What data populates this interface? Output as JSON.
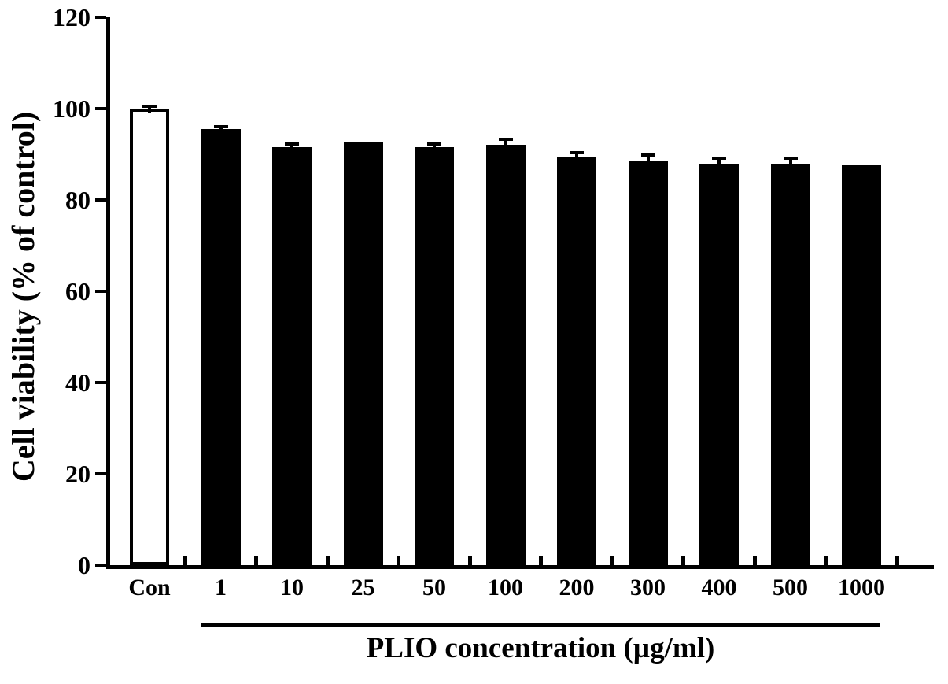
{
  "figure": {
    "background": "#ffffff"
  },
  "chart_data": {
    "type": "bar",
    "title": "",
    "xlabel": "PLIO concentration (µg/ml)",
    "ylabel": "Cell viability (% of control)",
    "ylim": [
      0,
      120
    ],
    "yticks": [
      0,
      20,
      40,
      60,
      80,
      100,
      120
    ],
    "categories": [
      "Con",
      "1",
      "10",
      "25",
      "50",
      "100",
      "200",
      "300",
      "400",
      "500",
      "1000"
    ],
    "values": [
      100,
      95.5,
      91.5,
      92.5,
      91.5,
      92,
      89.5,
      88.5,
      88,
      88,
      87.5
    ],
    "errors": [
      0.5,
      0.5,
      0.7,
      0,
      0.7,
      1.3,
      0.8,
      1.3,
      1.2,
      1.2,
      0
    ],
    "bar_fills": [
      "#ffffff",
      "#000000",
      "#000000",
      "#000000",
      "#000000",
      "#000000",
      "#000000",
      "#000000",
      "#000000",
      "#000000",
      "#000000"
    ],
    "bar_border": "#000000",
    "axis_color": "#000000",
    "grid": false,
    "legend": null,
    "x_group_bracket": {
      "from_category": "1",
      "to_category": "1000",
      "label": "PLIO concentration (µg/ml)"
    }
  }
}
